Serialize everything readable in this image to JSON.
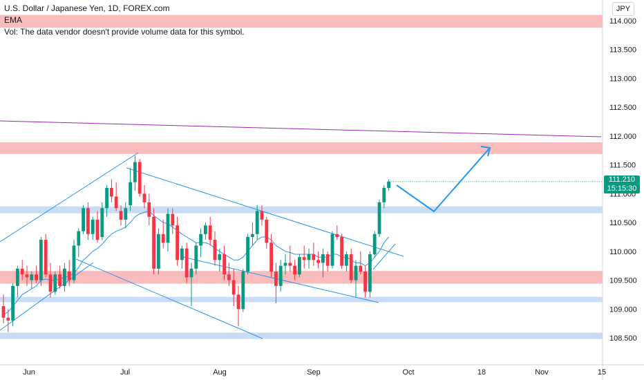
{
  "legend": {
    "title": "U.S. Dollar / Japanese Yen, 1D, FOREX.com",
    "ema": "EMA",
    "vol": "Vol: The data vendor doesn't provide volume data for this symbol."
  },
  "currency": "JPY",
  "last_price": {
    "price": "111.210",
    "countdown": "15:15:30"
  },
  "chart_data": {
    "type": "candlestick",
    "symbol": "USD/JPY",
    "timeframe": "1D",
    "y_ticks": [
      "114.000",
      "113.500",
      "113.000",
      "112.500",
      "112.000",
      "111.500",
      "111.000",
      "110.500",
      "110.000",
      "109.500",
      "109.000",
      "108.500"
    ],
    "ylim": [
      108.1,
      114.3
    ],
    "x_ticks": [
      "Jun",
      "Jul",
      "Aug",
      "Sep",
      "Oct",
      "18",
      "Nov",
      "15"
    ],
    "colors": {
      "up": "#089981",
      "down": "#f23645",
      "trend": "#2196f3",
      "purple": "#9c27b0",
      "resistance": "#f7a5a5",
      "support": "#b3cdef"
    },
    "zones": [
      {
        "kind": "resistance",
        "low": 113.88,
        "high": 114.1
      },
      {
        "kind": "resistance",
        "low": 111.69,
        "high": 111.89
      },
      {
        "kind": "support",
        "low": 110.66,
        "high": 110.78
      },
      {
        "kind": "resistance",
        "low": 109.44,
        "high": 109.66
      },
      {
        "kind": "support",
        "low": 109.12,
        "high": 109.21
      },
      {
        "kind": "support",
        "low": 108.48,
        "high": 108.59
      }
    ],
    "candles": [
      [
        109.05,
        109.25,
        108.75,
        108.85
      ],
      [
        108.85,
        109.0,
        108.6,
        108.8
      ],
      [
        108.8,
        109.45,
        108.7,
        109.4
      ],
      [
        109.4,
        109.75,
        109.2,
        109.7
      ],
      [
        109.7,
        109.85,
        109.5,
        109.6
      ],
      [
        109.6,
        109.75,
        109.4,
        109.55
      ],
      [
        109.5,
        109.65,
        109.35,
        109.6
      ],
      [
        109.6,
        109.75,
        109.45,
        109.5
      ],
      [
        109.5,
        110.25,
        109.4,
        110.2
      ],
      [
        110.2,
        110.3,
        109.55,
        109.6
      ],
      [
        109.6,
        109.8,
        109.2,
        109.3
      ],
      [
        109.3,
        109.65,
        109.25,
        109.6
      ],
      [
        109.6,
        109.75,
        109.35,
        109.4
      ],
      [
        109.4,
        109.8,
        109.3,
        109.7
      ],
      [
        109.65,
        109.85,
        109.4,
        109.5
      ],
      [
        109.5,
        110.2,
        109.45,
        110.1
      ],
      [
        110.1,
        110.4,
        109.9,
        110.35
      ],
      [
        110.35,
        110.8,
        110.3,
        110.75
      ],
      [
        110.75,
        110.85,
        110.2,
        110.3
      ],
      [
        110.3,
        110.6,
        110.2,
        110.55
      ],
      [
        110.55,
        110.7,
        110.15,
        110.2
      ],
      [
        110.25,
        110.85,
        110.2,
        110.75
      ],
      [
        110.75,
        111.15,
        110.6,
        111.1
      ],
      [
        111.1,
        111.25,
        110.85,
        110.95
      ],
      [
        110.95,
        111.2,
        110.7,
        110.75
      ],
      [
        110.7,
        110.8,
        110.45,
        110.55
      ],
      [
        110.55,
        110.85,
        110.4,
        110.75
      ],
      [
        110.8,
        111.45,
        110.7,
        111.2
      ],
      [
        111.2,
        111.66,
        111.05,
        111.55
      ],
      [
        111.55,
        111.6,
        110.95,
        111.0
      ],
      [
        111.0,
        111.15,
        110.75,
        110.85
      ],
      [
        110.85,
        111.0,
        110.45,
        110.6
      ],
      [
        110.6,
        110.75,
        109.6,
        109.7
      ],
      [
        109.7,
        110.4,
        109.6,
        110.3
      ],
      [
        110.3,
        110.55,
        110.05,
        110.15
      ],
      [
        110.15,
        110.75,
        110.0,
        110.65
      ],
      [
        110.65,
        110.75,
        110.3,
        110.45
      ],
      [
        110.45,
        110.6,
        109.75,
        109.85
      ],
      [
        109.85,
        110.1,
        109.7,
        110.05
      ],
      [
        110.05,
        110.15,
        109.45,
        109.55
      ],
      [
        109.55,
        109.8,
        109.05,
        109.7
      ],
      [
        109.7,
        110.15,
        109.6,
        110.1
      ],
      [
        110.1,
        110.4,
        109.9,
        110.3
      ],
      [
        110.3,
        110.5,
        110.2,
        110.45
      ],
      [
        110.45,
        110.6,
        110.1,
        110.2
      ],
      [
        110.2,
        110.35,
        109.75,
        109.85
      ],
      [
        109.85,
        110.05,
        109.65,
        109.95
      ],
      [
        109.95,
        110.1,
        109.5,
        109.6
      ],
      [
        109.6,
        109.8,
        109.4,
        109.5
      ],
      [
        109.5,
        109.7,
        109.05,
        109.25
      ],
      [
        109.25,
        109.4,
        108.7,
        109.0
      ],
      [
        109.0,
        109.7,
        108.95,
        109.65
      ],
      [
        109.65,
        110.3,
        109.6,
        110.25
      ],
      [
        110.25,
        110.5,
        110.1,
        110.3
      ],
      [
        110.3,
        110.8,
        110.2,
        110.7
      ],
      [
        110.7,
        110.8,
        110.45,
        110.55
      ],
      [
        110.55,
        110.6,
        110.05,
        110.15
      ],
      [
        110.15,
        110.3,
        109.55,
        109.65
      ],
      [
        109.65,
        109.8,
        109.1,
        109.4
      ],
      [
        109.4,
        109.85,
        109.3,
        109.75
      ],
      [
        109.75,
        109.95,
        109.6,
        109.8
      ],
      [
        109.8,
        110.1,
        109.65,
        109.75
      ],
      [
        109.75,
        109.85,
        109.5,
        109.6
      ],
      [
        109.6,
        109.95,
        109.55,
        109.9
      ],
      [
        109.9,
        110.1,
        109.7,
        109.85
      ],
      [
        109.85,
        110.05,
        109.7,
        109.95
      ],
      [
        109.95,
        110.15,
        109.75,
        109.85
      ],
      [
        109.85,
        110.0,
        109.7,
        109.8
      ],
      [
        109.8,
        110.05,
        109.55,
        109.95
      ],
      [
        109.95,
        110.0,
        109.65,
        109.75
      ],
      [
        109.75,
        110.35,
        109.7,
        110.3
      ],
      [
        110.3,
        110.45,
        110.2,
        110.25
      ],
      [
        110.25,
        110.3,
        109.7,
        109.75
      ],
      [
        109.75,
        110.0,
        109.65,
        109.95
      ],
      [
        109.95,
        110.05,
        109.45,
        109.5
      ],
      [
        109.5,
        109.85,
        109.2,
        109.75
      ],
      [
        109.75,
        110.0,
        109.6,
        109.65
      ],
      [
        109.65,
        109.75,
        109.2,
        109.3
      ],
      [
        109.3,
        110.0,
        109.2,
        109.95
      ],
      [
        109.95,
        110.35,
        109.9,
        110.3
      ],
      [
        110.3,
        110.9,
        110.25,
        110.85
      ],
      [
        110.85,
        111.15,
        110.75,
        111.1
      ],
      [
        111.1,
        111.25,
        111.05,
        111.21
      ]
    ],
    "ema_values": [
      108.9,
      108.95,
      109.05,
      109.15,
      109.25,
      109.3,
      109.35,
      109.4,
      109.5,
      109.52,
      109.5,
      109.5,
      109.52,
      109.55,
      109.57,
      109.62,
      109.72,
      109.85,
      109.92,
      110.0,
      110.05,
      110.12,
      110.22,
      110.3,
      110.35,
      110.38,
      110.42,
      110.5,
      110.6,
      110.65,
      110.68,
      110.7,
      110.62,
      110.56,
      110.5,
      110.48,
      110.42,
      110.36,
      110.3,
      110.25,
      110.2,
      110.15,
      110.15,
      110.15,
      110.12,
      110.05,
      110.0,
      109.95,
      109.9,
      109.85,
      109.85,
      109.9,
      110.0,
      110.1,
      110.2,
      110.25,
      110.25,
      110.2,
      110.1,
      110.05,
      110.0,
      109.98,
      109.95,
      109.95,
      109.95,
      109.95,
      109.95,
      109.9,
      109.9,
      109.9,
      109.95,
      109.95,
      109.9,
      109.9,
      109.85,
      109.8,
      109.8,
      109.75,
      109.8,
      109.9,
      110.0,
      110.15,
      110.25
    ]
  }
}
